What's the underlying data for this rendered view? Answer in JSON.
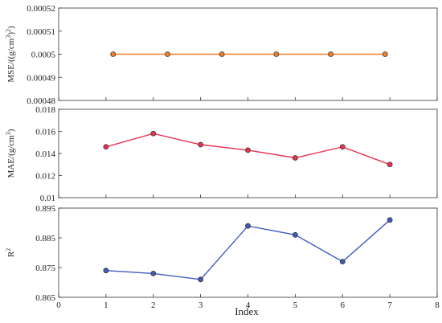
{
  "chart_data": [
    {
      "type": "line",
      "ylabel_main": "MSE/((g/cm",
      "ylabel_sup": "3",
      "ylabel_tail": ")",
      "ylabel_sup2": "2",
      "ylabel_end": ")",
      "ylim": [
        0.00048,
        0.00052
      ],
      "yticks": [
        "0.00048",
        "0.00049",
        "0.0005",
        "0.00051",
        "0.00052"
      ],
      "color": "#f07f2a",
      "x": [
        1.15,
        2.3,
        3.45,
        4.6,
        5.75,
        6.9
      ],
      "values": [
        0.0005,
        0.0005,
        0.0005,
        0.0005,
        0.0005,
        0.0005
      ]
    },
    {
      "type": "line",
      "ylabel_main": "MAE/(g/cm",
      "ylabel_sup": "3",
      "ylabel_end": ")",
      "ylim": [
        0.01,
        0.018
      ],
      "yticks": [
        "0.01",
        "0.012",
        "0.014",
        "0.016",
        "0.018"
      ],
      "color": "#e8334f",
      "x": [
        1,
        2,
        3,
        4,
        5,
        6,
        7
      ],
      "values": [
        0.0146,
        0.0158,
        0.0148,
        0.0143,
        0.0136,
        0.0146,
        0.013
      ]
    },
    {
      "type": "line",
      "ylabel_main": "R",
      "ylabel_sup": "2",
      "ylim": [
        0.865,
        0.895
      ],
      "yticks": [
        "0.865",
        "0.875",
        "0.885",
        "0.895"
      ],
      "color": "#3f5bbf",
      "x": [
        1,
        2,
        3,
        4,
        5,
        6,
        7
      ],
      "values": [
        0.874,
        0.873,
        0.871,
        0.889,
        0.886,
        0.877,
        0.891
      ]
    }
  ],
  "x_axis": {
    "label": "Index",
    "xlim": [
      0,
      8
    ],
    "ticks": [
      "0",
      "1",
      "2",
      "3",
      "4",
      "5",
      "6",
      "7",
      "8"
    ]
  }
}
